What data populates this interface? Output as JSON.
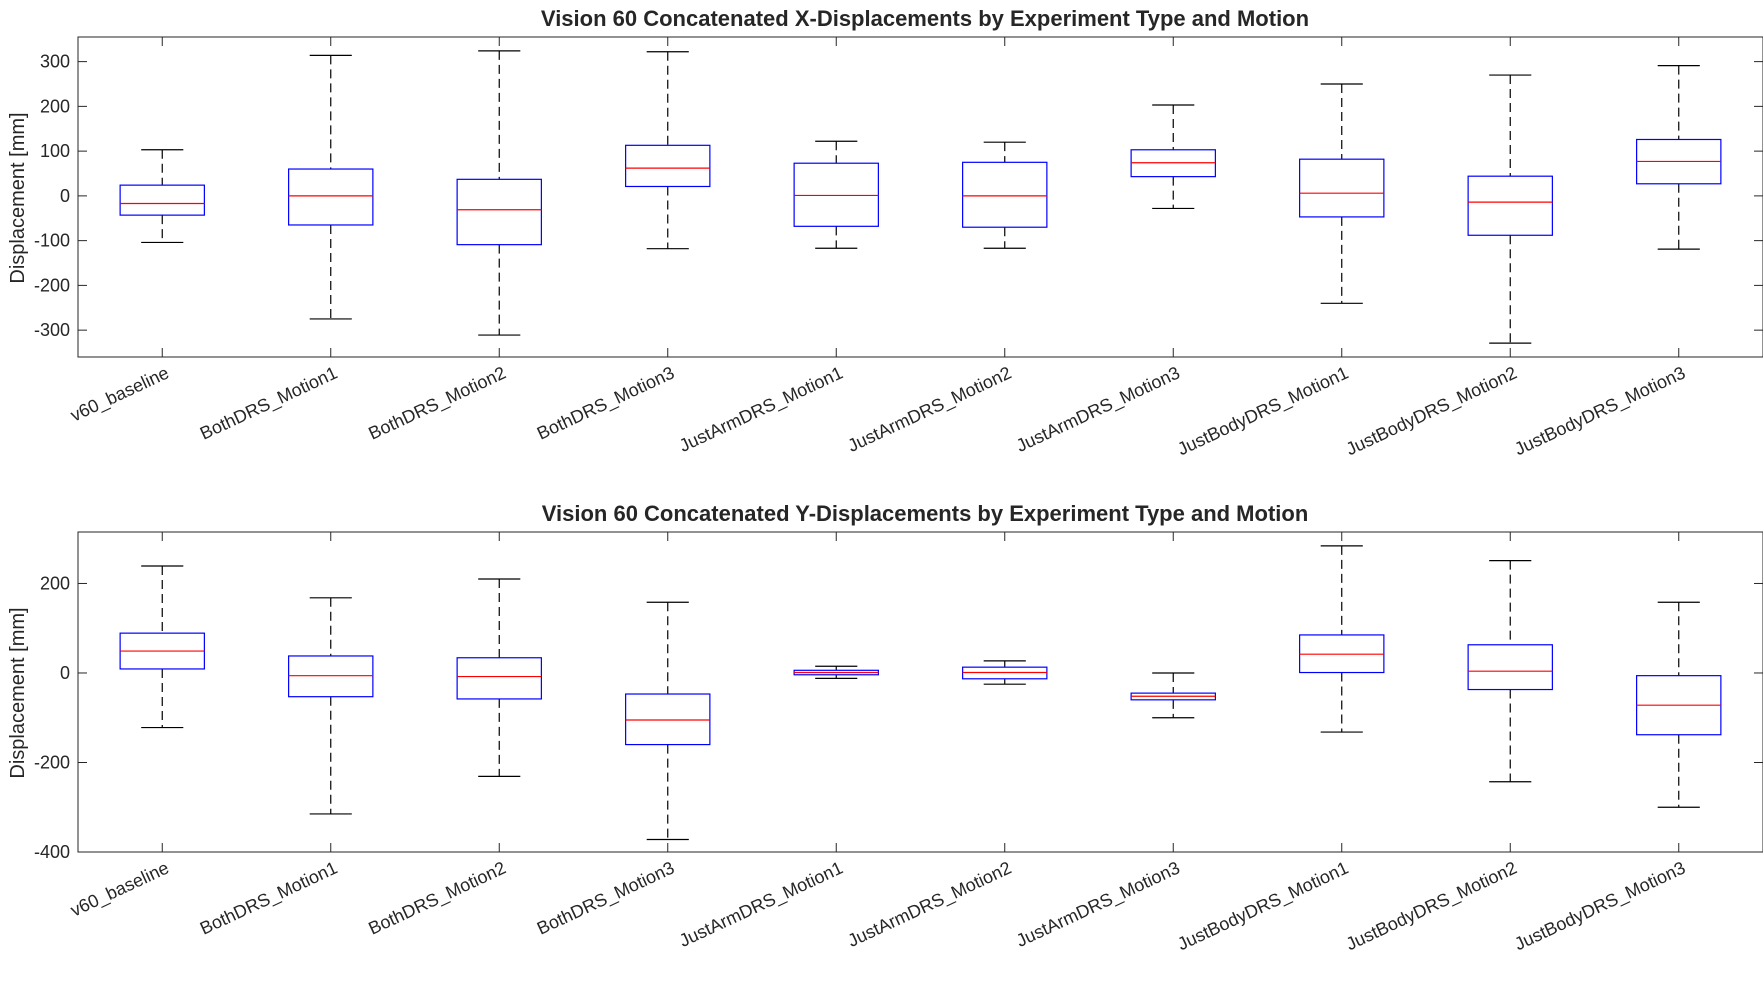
{
  "chart_data": [
    {
      "type": "box",
      "title": "Vision 60 Concatenated X-Displacements by Experiment Type and Motion",
      "xlabel": "",
      "ylabel": "Displacement [mm]",
      "ylim": [
        -360,
        355
      ],
      "yticks": [
        -300,
        -200,
        -100,
        0,
        100,
        200,
        300
      ],
      "ytick_labels": [
        "-300",
        "-200",
        "-100",
        "0",
        "100",
        "200",
        "300"
      ],
      "grid": false,
      "box_color": "#0000ff",
      "median_color": "#ff0000",
      "whisker_color": "#000000",
      "categories": [
        "v60_baseline",
        "BothDRS_Motion1",
        "BothDRS_Motion2",
        "BothDRS_Motion3",
        "JustArmDRS_Motion1",
        "JustArmDRS_Motion2",
        "JustArmDRS_Motion3",
        "JustBodyDRS_Motion1",
        "JustBodyDRS_Motion2",
        "JustBodyDRS_Motion3"
      ],
      "boxes": [
        {
          "whisker_low": -104,
          "q1": -43,
          "median": -17,
          "q3": 24,
          "whisker_high": 103
        },
        {
          "whisker_low": -275,
          "q1": -65,
          "median": 0,
          "q3": 60,
          "whisker_high": 314
        },
        {
          "whisker_low": -311,
          "q1": -109,
          "median": -31,
          "q3": 37,
          "whisker_high": 324
        },
        {
          "whisker_low": -118,
          "q1": 21,
          "median": 62,
          "q3": 113,
          "whisker_high": 322
        },
        {
          "whisker_low": -117,
          "q1": -68,
          "median": 1,
          "q3": 73,
          "whisker_high": 122
        },
        {
          "whisker_low": -117,
          "q1": -70,
          "median": 0,
          "q3": 75,
          "whisker_high": 120
        },
        {
          "whisker_low": -28,
          "q1": 43,
          "median": 74,
          "q3": 103,
          "whisker_high": 203
        },
        {
          "whisker_low": -240,
          "q1": -47,
          "median": 6,
          "q3": 82,
          "whisker_high": 250
        },
        {
          "whisker_low": -329,
          "q1": -88,
          "median": -14,
          "q3": 44,
          "whisker_high": 270
        },
        {
          "whisker_low": -119,
          "q1": 27,
          "median": 77,
          "q3": 126,
          "whisker_high": 291
        }
      ]
    },
    {
      "type": "box",
      "title": "Vision 60 Concatenated Y-Displacements by Experiment Type and Motion",
      "xlabel": "",
      "ylabel": "Displacement [mm]",
      "ylim": [
        -400,
        315
      ],
      "yticks": [
        -400,
        -200,
        0,
        200
      ],
      "ytick_labels": [
        "-400",
        "-200",
        "0",
        "200"
      ],
      "grid": false,
      "box_color": "#0000ff",
      "median_color": "#ff0000",
      "whisker_color": "#000000",
      "categories": [
        "v60_baseline",
        "BothDRS_Motion1",
        "BothDRS_Motion2",
        "BothDRS_Motion3",
        "JustArmDRS_Motion1",
        "JustArmDRS_Motion2",
        "JustArmDRS_Motion3",
        "JustBodyDRS_Motion1",
        "JustBodyDRS_Motion2",
        "JustBodyDRS_Motion3"
      ],
      "boxes": [
        {
          "whisker_low": -122,
          "q1": 9,
          "median": 49,
          "q3": 89,
          "whisker_high": 239
        },
        {
          "whisker_low": -315,
          "q1": -53,
          "median": -6,
          "q3": 38,
          "whisker_high": 168
        },
        {
          "whisker_low": -231,
          "q1": -58,
          "median": -8,
          "q3": 34,
          "whisker_high": 210
        },
        {
          "whisker_low": -372,
          "q1": -160,
          "median": -105,
          "q3": -47,
          "whisker_high": 158
        },
        {
          "whisker_low": -12,
          "q1": -4,
          "median": 1,
          "q3": 6,
          "whisker_high": 15
        },
        {
          "whisker_low": -25,
          "q1": -13,
          "median": 1,
          "q3": 13,
          "whisker_high": 27
        },
        {
          "whisker_low": -100,
          "q1": -60,
          "median": -52,
          "q3": -45,
          "whisker_high": 0
        },
        {
          "whisker_low": -132,
          "q1": 1,
          "median": 42,
          "q3": 85,
          "whisker_high": 284
        },
        {
          "whisker_low": -243,
          "q1": -37,
          "median": 4,
          "q3": 63,
          "whisker_high": 251
        },
        {
          "whisker_low": -300,
          "q1": -138,
          "median": -72,
          "q3": -6,
          "whisker_high": 158
        }
      ]
    }
  ]
}
